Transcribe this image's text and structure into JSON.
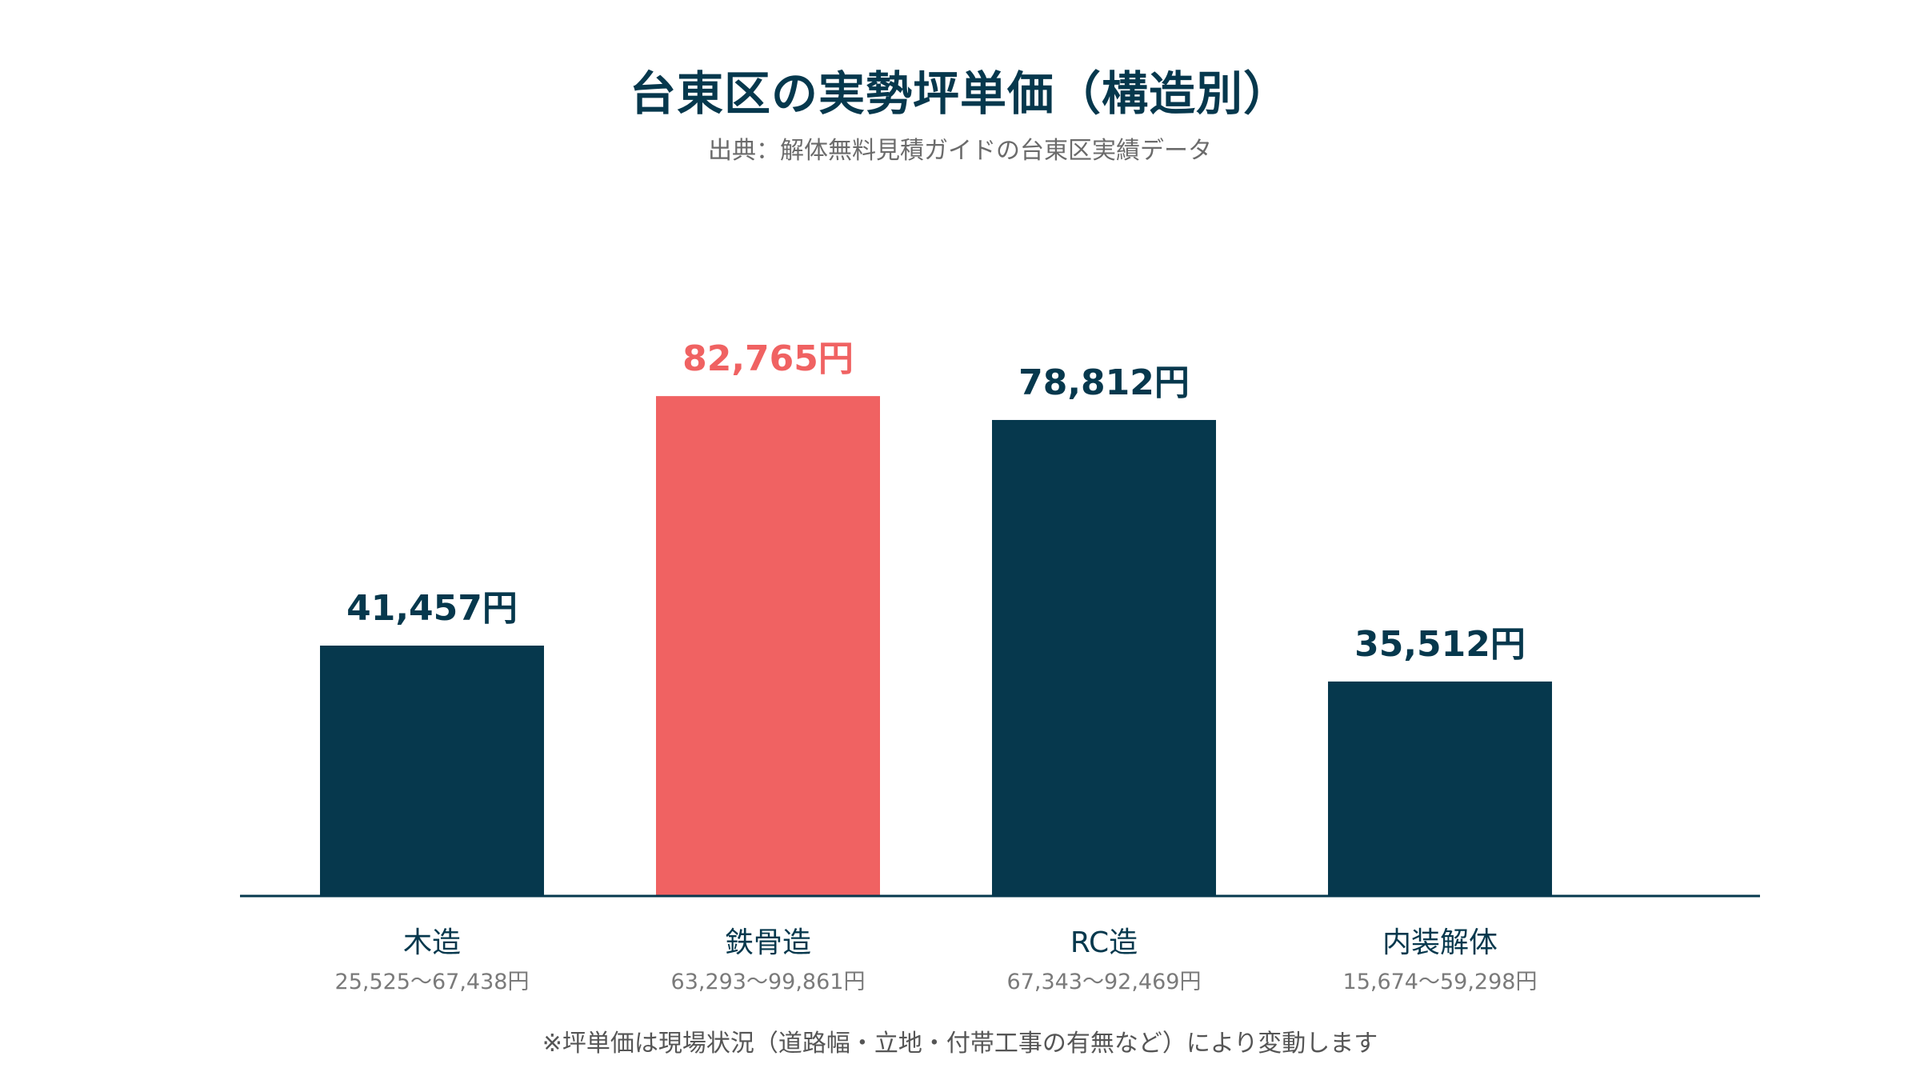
{
  "chart_data": {
    "type": "bar",
    "title": "台東区の実勢坪単価（構造別）",
    "subtitle": "出典：解体無料見積ガイドの台東区実績データ",
    "categories": [
      "木造",
      "鉄骨造",
      "RC造",
      "内装解体"
    ],
    "values": [
      41457,
      82765,
      78812,
      35512
    ],
    "value_labels": [
      "41,457円",
      "82,765円",
      "78,812円",
      "35,512円"
    ],
    "range_labels": [
      "25,525〜67,438円",
      "63,293〜99,861円",
      "67,343〜92,469円",
      "15,674〜59,298円"
    ],
    "highlight_index": 1,
    "ylim": [
      0,
      100000
    ],
    "grid": false,
    "footnote": "※坪単価は現場状況（道路幅・立地・付帯工事の有無など）により変動します"
  },
  "colors": {
    "bar": "#06384d",
    "highlight": "#f06262",
    "title": "#06384d",
    "category_label": "#06384d",
    "range_label": "#7a7a7a",
    "axis": "#06384d"
  }
}
